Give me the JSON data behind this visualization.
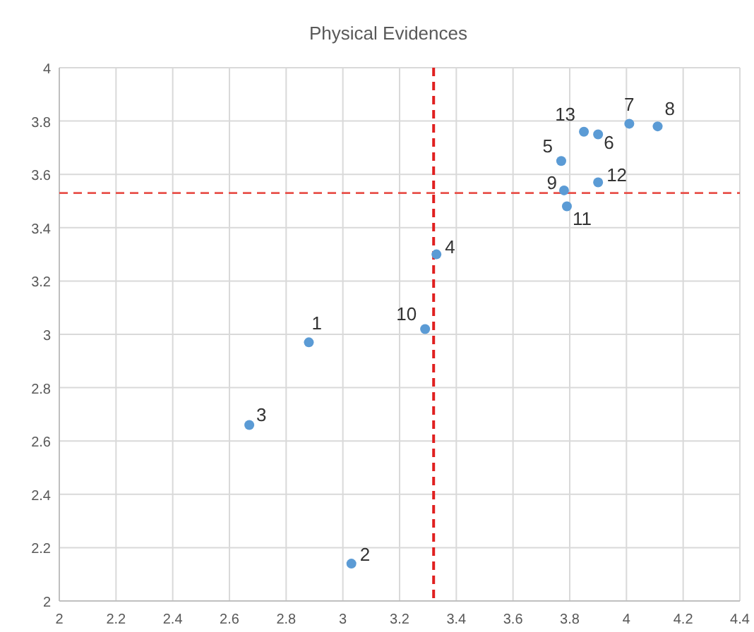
{
  "chart_data": {
    "type": "scatter",
    "title": "Physical Evidences",
    "x": [
      2.88,
      3.03,
      2.67,
      3.33,
      3.77,
      3.9,
      4.01,
      4.11,
      3.78,
      3.29,
      3.79,
      3.9,
      3.85
    ],
    "series": [
      {
        "color": "#5b9bd5",
        "values": [
          2.97,
          2.14,
          2.66,
          3.3,
          3.65,
          3.75,
          3.79,
          3.78,
          3.54,
          3.02,
          3.48,
          3.57,
          3.76
        ]
      }
    ],
    "annotations": [
      {
        "text": "1",
        "x": 2.88,
        "y": 2.97
      },
      {
        "text": "2",
        "x": 3.03,
        "y": 2.14
      },
      {
        "text": "3",
        "x": 2.67,
        "y": 2.66
      },
      {
        "text": "4",
        "x": 3.33,
        "y": 3.3
      },
      {
        "text": "5",
        "x": 3.77,
        "y": 3.65
      },
      {
        "text": "6",
        "x": 3.9,
        "y": 3.75
      },
      {
        "text": "7",
        "x": 4.01,
        "y": 3.79
      },
      {
        "text": "8",
        "x": 4.11,
        "y": 3.78
      },
      {
        "text": "9",
        "x": 3.78,
        "y": 3.54
      },
      {
        "text": "10",
        "x": 3.29,
        "y": 3.02
      },
      {
        "text": "11",
        "x": 3.79,
        "y": 3.48
      },
      {
        "text": "12",
        "x": 3.9,
        "y": 3.57
      },
      {
        "text": "13",
        "x": 3.85,
        "y": 3.76
      }
    ],
    "ref_lines": [
      {
        "axis": "x",
        "value": 3.32,
        "color": "#e02020",
        "line_style": "dashed"
      },
      {
        "axis": "y",
        "value": 3.53,
        "color": "#e8504a",
        "line_style": "dashed"
      }
    ],
    "xlim": [
      2,
      4.4
    ],
    "xticks": [
      2,
      2.2,
      2.4,
      2.6,
      2.8,
      3,
      3.2,
      3.4,
      3.6,
      3.8,
      4,
      4.2,
      4.4
    ],
    "ylim": [
      2,
      4
    ],
    "yticks": [
      2,
      2.2,
      2.4,
      2.6,
      2.8,
      3,
      3.2,
      3.4,
      3.6,
      3.8,
      4
    ],
    "grid": true,
    "marker": "circle"
  }
}
